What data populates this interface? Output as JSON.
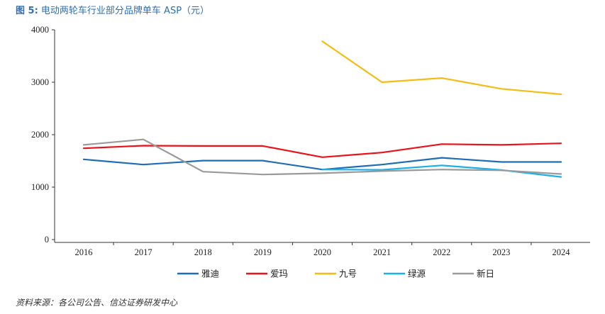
{
  "figure": {
    "label": "图 5:",
    "title": "电动两轮车行业部分品牌单车 ASP（元）",
    "source": "资料来源：各公司公告、信达证券研发中心"
  },
  "chart_data": {
    "type": "line",
    "title": "电动两轮车行业部分品牌单车 ASP（元）",
    "xlabel": "",
    "ylabel": "",
    "x": [
      "2016",
      "2017",
      "2018",
      "2019",
      "2020",
      "2021",
      "2022",
      "2023",
      "2024"
    ],
    "ylim": [
      0,
      4000
    ],
    "yticks": [
      0,
      1000,
      2000,
      3000,
      4000
    ],
    "legend_position": "bottom",
    "series": [
      {
        "name": "雅迪",
        "color": "#1f6db5",
        "values": [
          1530,
          1430,
          1505,
          1505,
          1335,
          1430,
          1560,
          1480,
          1480
        ]
      },
      {
        "name": "爱玛",
        "color": "#e8141a",
        "values": [
          1740,
          1790,
          1785,
          1785,
          1570,
          1660,
          1820,
          1805,
          1835
        ]
      },
      {
        "name": "九号",
        "color": "#f5bd14",
        "values": [
          null,
          null,
          null,
          null,
          3780,
          3000,
          3080,
          2875,
          2770
        ]
      },
      {
        "name": "绿源",
        "color": "#1bb0e8",
        "values": [
          null,
          null,
          null,
          null,
          1335,
          1330,
          1415,
          1325,
          1195
        ]
      },
      {
        "name": "新日",
        "color": "#9a9a9a",
        "values": [
          1805,
          1910,
          1295,
          1240,
          1265,
          1305,
          1335,
          1320,
          1250
        ]
      }
    ]
  }
}
